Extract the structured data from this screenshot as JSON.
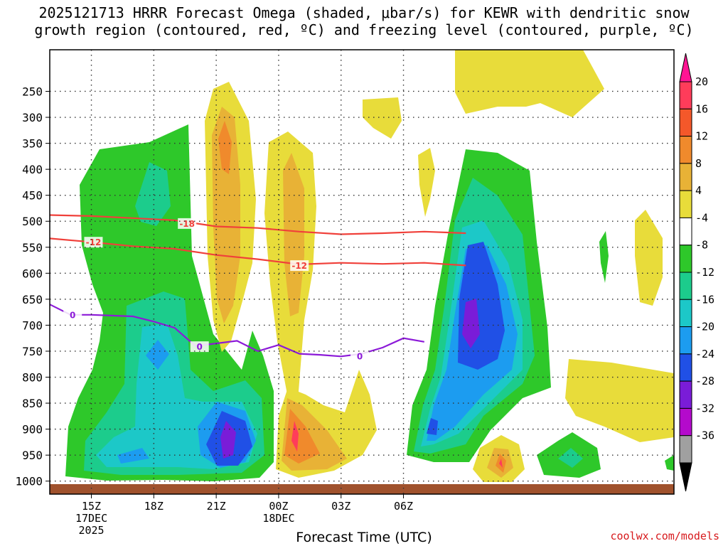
{
  "chart_data": {
    "type": "heatmap",
    "title_lines": [
      "2025121713 HRRR Forecast Omega (shaded, μbar/s) for KEWR with dendritic snow",
      "growth region (contoured, red, ºC) and freezing level (contoured, purple, ºC)"
    ],
    "xlabel": "Forecast Time (UTC)",
    "ylabel": "",
    "credit": "coolwx.com/models",
    "x_unit": "hours since 2025-12-17 13Z",
    "xlim": [
      13,
      43
    ],
    "ylim_hpa": [
      170,
      1025
    ],
    "y_ticks": [
      "250",
      "300",
      "350",
      "400",
      "450",
      "500",
      "550",
      "600",
      "650",
      "700",
      "750",
      "800",
      "850",
      "900",
      "950",
      "1000"
    ],
    "x_ticks": [
      {
        "x": 15,
        "lines": [
          "15Z",
          "17DEC",
          "2025"
        ]
      },
      {
        "x": 18,
        "lines": [
          "18Z"
        ]
      },
      {
        "x": 21,
        "lines": [
          "21Z"
        ]
      },
      {
        "x": 24,
        "lines": [
          "00Z",
          "18DEC"
        ]
      },
      {
        "x": 27,
        "lines": [
          "03Z"
        ]
      },
      {
        "x": 30,
        "lines": [
          "06Z"
        ]
      }
    ],
    "colorbar": {
      "labels": [
        "20",
        "16",
        "12",
        "8",
        "4",
        "-4",
        "-8",
        "-12",
        "-16",
        "-20",
        "-24",
        "-28",
        "-32",
        "-36"
      ],
      "colors": [
        "#ff3c5a",
        "#f4582a",
        "#f08a2c",
        "#e8b236",
        "#e8dc3a",
        "#ffffff",
        "#2ec82a",
        "#1ccc8c",
        "#1cc8c8",
        "#1c9cf0",
        "#2050e6",
        "#7a1cd8",
        "#b40acc",
        "#a0a0a0"
      ],
      "top_arrow": "#ff1493",
      "bottom_arrow": "#000000"
    },
    "series": [
      {
        "name": "-18 C isotherm",
        "color": "#f0403a",
        "points": [
          [
            13,
            488
          ],
          [
            15,
            490
          ],
          [
            17,
            494
          ],
          [
            19,
            498
          ],
          [
            21,
            510
          ],
          [
            23,
            513
          ],
          [
            25,
            520
          ],
          [
            27,
            525
          ],
          [
            29,
            523
          ],
          [
            31,
            520
          ],
          [
            33,
            523
          ]
        ],
        "label": "-18",
        "label_at": [
          19.6,
          505
        ]
      },
      {
        "name": "-12 C isotherm",
        "color": "#f0403a",
        "points": [
          [
            13,
            533
          ],
          [
            15,
            540
          ],
          [
            17,
            548
          ],
          [
            19,
            553
          ],
          [
            21,
            565
          ],
          [
            23,
            573
          ],
          [
            25,
            583
          ],
          [
            27,
            580
          ],
          [
            29,
            582
          ],
          [
            31,
            580
          ],
          [
            33,
            585
          ]
        ],
        "label": "-12",
        "label_at": [
          15.1,
          541
        ],
        "label2": "-12",
        "label2_at": [
          25.0,
          586
        ]
      },
      {
        "name": "0 C freezing level",
        "color": "#8c1ad8",
        "points": [
          [
            13,
            660
          ],
          [
            14,
            680
          ],
          [
            15,
            680
          ],
          [
            17,
            683
          ],
          [
            18,
            693
          ],
          [
            19,
            705
          ],
          [
            20,
            740
          ],
          [
            22,
            730
          ],
          [
            23,
            750
          ],
          [
            24,
            738
          ],
          [
            25,
            755
          ],
          [
            26,
            757
          ],
          [
            27,
            760
          ],
          [
            28,
            755
          ],
          [
            29,
            743
          ],
          [
            30,
            725
          ],
          [
            31,
            732
          ]
        ],
        "label": "0",
        "label_at": [
          14.1,
          681
        ],
        "label2": "0",
        "label2_at": [
          20.2,
          742
        ],
        "label3": "0",
        "label3_at": [
          27.9,
          760
        ]
      }
    ]
  }
}
